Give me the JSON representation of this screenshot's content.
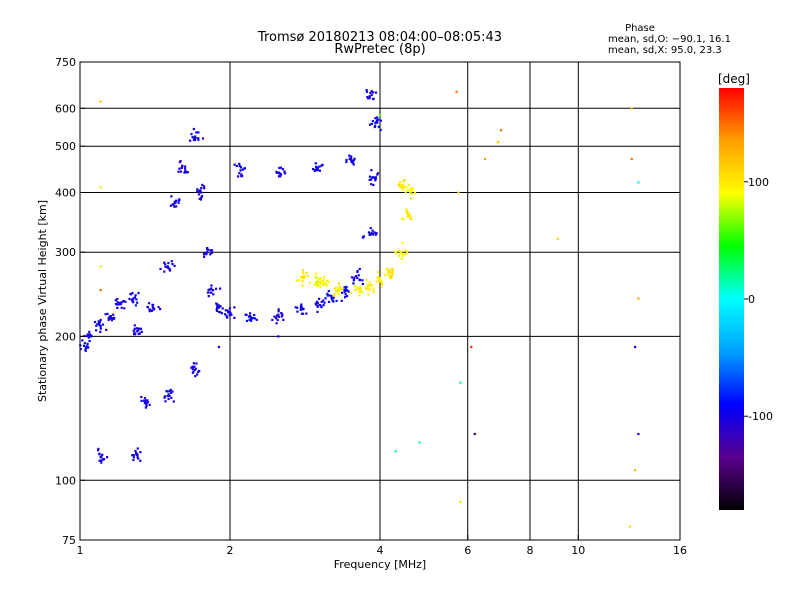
{
  "chart_data": {
    "type": "scatter",
    "title": "Tromsø 20180213 08:04:00–08:05:43",
    "subtitle": "RwPretec (8p)",
    "xlabel": "Frequency [MHz]",
    "ylabel": "Stationary phase Virtual Height [km]",
    "x_scale": "log",
    "y_scale": "log",
    "xlim": [
      1,
      16
    ],
    "ylim": [
      75,
      750
    ],
    "x_ticks": [
      1,
      2,
      4,
      6,
      8,
      10,
      16
    ],
    "y_ticks": [
      75,
      100,
      200,
      300,
      400,
      500,
      600,
      750
    ],
    "x_gridlines": [
      2,
      4,
      6,
      8,
      10
    ],
    "y_gridlines": [
      100,
      200,
      300,
      400,
      500,
      600
    ],
    "grid": true,
    "stats": {
      "title": "Phase",
      "line1": "mean, sd,O: −90.1, 16.1",
      "line2": "mean, sd,X:  95.0, 23.3"
    },
    "colorbar": {
      "label": "[deg]",
      "range": [
        -180,
        180
      ],
      "ticks": [
        100,
        0,
        -100
      ],
      "colors": [
        "#000000",
        "#5a0090",
        "#0000ff",
        "#00a0ff",
        "#00ffff",
        "#00ff00",
        "#ffff00",
        "#ffa000",
        "#ff0000"
      ]
    },
    "series": [
      {
        "points": [
          [
            1.03,
            190,
            -95
          ],
          [
            1.05,
            200,
            -100
          ],
          [
            1.1,
            210,
            -98
          ],
          [
            1.15,
            220,
            -102
          ],
          [
            1.2,
            235,
            -100
          ],
          [
            1.28,
            240,
            -95
          ],
          [
            1.3,
            205,
            -100
          ],
          [
            1.4,
            230,
            -100
          ],
          [
            1.5,
            280,
            -100
          ],
          [
            1.55,
            380,
            -98
          ],
          [
            1.6,
            450,
            -100
          ],
          [
            1.7,
            520,
            -95
          ],
          [
            1.75,
            400,
            -100
          ],
          [
            1.8,
            300,
            -100
          ],
          [
            1.85,
            250,
            -102
          ],
          [
            1.9,
            230,
            -100
          ],
          [
            2.0,
            225,
            -100
          ],
          [
            2.2,
            220,
            -95
          ],
          [
            2.5,
            222,
            -100
          ],
          [
            2.8,
            228,
            -98
          ],
          [
            3.0,
            232,
            -100
          ],
          [
            3.2,
            240,
            -90
          ],
          [
            3.4,
            248,
            -95
          ],
          [
            3.6,
            265,
            -100
          ],
          [
            3.8,
            330,
            -100
          ],
          [
            3.9,
            430,
            -98
          ],
          [
            3.95,
            560,
            -95
          ],
          [
            3.85,
            640,
            -100
          ],
          [
            3.5,
            470,
            -100
          ],
          [
            3.0,
            450,
            -95
          ],
          [
            2.5,
            440,
            -100
          ],
          [
            2.1,
            445,
            -100
          ],
          [
            1.7,
            170,
            -100
          ],
          [
            1.5,
            150,
            -100
          ],
          [
            1.35,
            145,
            -100
          ],
          [
            1.1,
            112,
            -100
          ],
          [
            1.3,
            113,
            -100
          ]
        ]
      },
      {
        "points": [
          [
            3.1,
            258,
            95
          ],
          [
            3.3,
            252,
            100
          ],
          [
            3.6,
            252,
            95
          ],
          [
            3.8,
            255,
            98
          ],
          [
            4.0,
            262,
            100
          ],
          [
            4.2,
            272,
            105
          ],
          [
            4.4,
            300,
            95
          ],
          [
            4.55,
            360,
            100
          ],
          [
            4.6,
            400,
            90
          ],
          [
            4.4,
            410,
            100
          ],
          [
            2.8,
            265,
            100
          ],
          [
            3.0,
            260,
            90
          ]
        ]
      }
    ],
    "scattered_points": [
      [
        1.1,
        620,
        120
      ],
      [
        1.1,
        410,
        100
      ],
      [
        1.1,
        280,
        80
      ],
      [
        1.1,
        250,
        150
      ],
      [
        1.9,
        190,
        -100
      ],
      [
        2.5,
        200,
        -100
      ],
      [
        5.7,
        650,
        150
      ],
      [
        5.75,
        400,
        110
      ],
      [
        6.9,
        510,
        120
      ],
      [
        6.1,
        190,
        170
      ],
      [
        5.8,
        160,
        20
      ],
      [
        5.8,
        90,
        80
      ],
      [
        9.1,
        320,
        110
      ],
      [
        12.8,
        600,
        120
      ],
      [
        12.8,
        470,
        150
      ],
      [
        13.2,
        420,
        0
      ],
      [
        13.2,
        240,
        130
      ],
      [
        13.0,
        190,
        -100
      ],
      [
        13.2,
        125,
        -100
      ],
      [
        13.0,
        105,
        120
      ],
      [
        12.7,
        80,
        110
      ],
      [
        4.0,
        580,
        60
      ],
      [
        4.3,
        115,
        20
      ],
      [
        6.2,
        125,
        -150
      ],
      [
        4.8,
        120,
        10
      ],
      [
        7.0,
        540,
        150
      ],
      [
        6.5,
        470,
        130
      ]
    ]
  }
}
